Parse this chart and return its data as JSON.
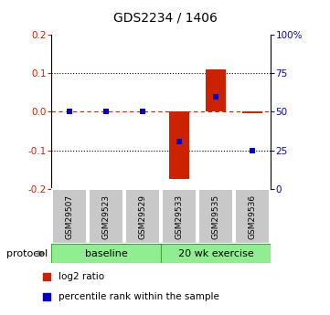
{
  "title": "GDS2234 / 1406",
  "samples": [
    "GSM29507",
    "GSM29523",
    "GSM29529",
    "GSM29533",
    "GSM29535",
    "GSM29536"
  ],
  "log2_ratio": [
    0.0,
    0.0,
    0.0,
    -0.175,
    0.11,
    -0.003
  ],
  "percentile_rank": [
    50,
    50,
    50,
    31,
    60,
    25
  ],
  "group1_label": "baseline",
  "group2_label": "20 wk exercise",
  "group1_indices": [
    0,
    1,
    2
  ],
  "group2_indices": [
    3,
    4,
    5
  ],
  "group_color": "#90ee90",
  "ylim": [
    -0.2,
    0.2
  ],
  "left_yticks": [
    -0.2,
    -0.1,
    0.0,
    0.1,
    0.2
  ],
  "right_yticks": [
    0,
    25,
    50,
    75,
    100
  ],
  "bar_color": "#cc2200",
  "dot_color": "#0000cc",
  "bar_width": 0.55,
  "legend_bar": "log2 ratio",
  "legend_dot": "percentile rank within the sample",
  "protocol_label": "protocol"
}
